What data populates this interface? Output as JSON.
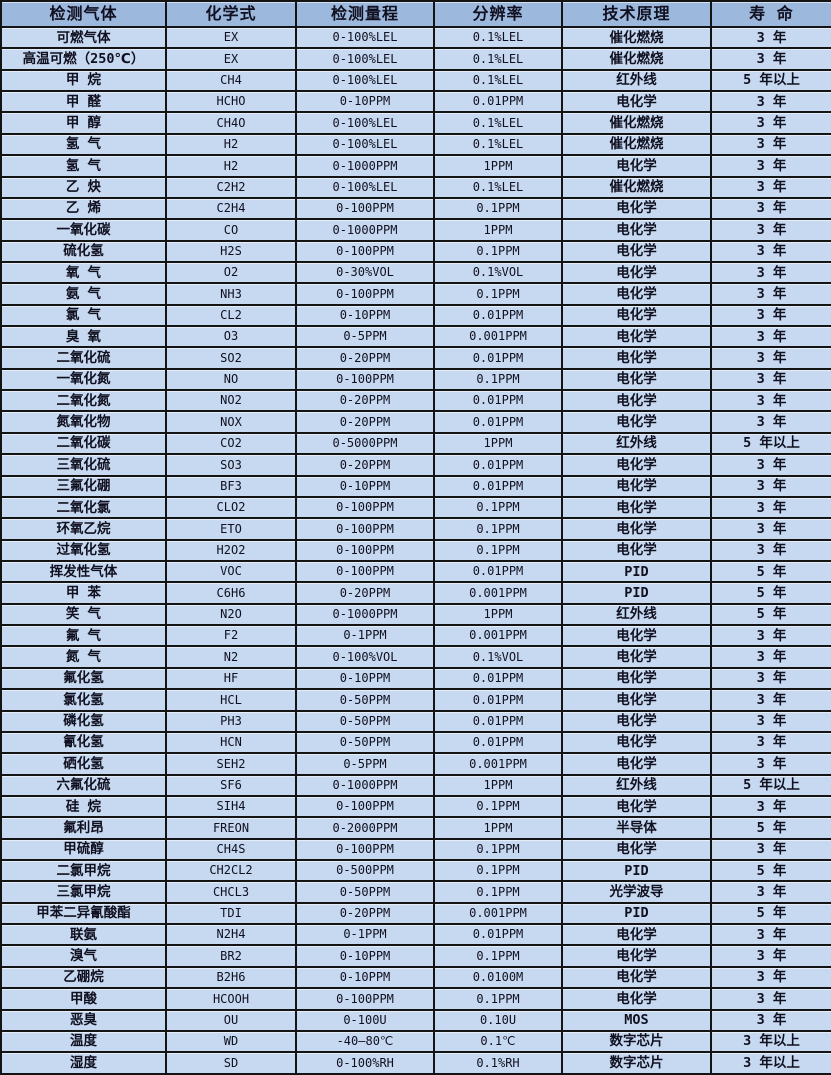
{
  "colors": {
    "header_bg": "#9cb8dc",
    "row_bg": "#c6d9f0",
    "border_color": "#141414",
    "text_color": "#101020"
  },
  "table": {
    "headers": [
      "检测气体",
      "化学式",
      "检测量程",
      "分辨率",
      "技术原理",
      "寿 命"
    ],
    "rows": [
      [
        "可燃气体",
        "EX",
        "0-100%LEL",
        "0.1%LEL",
        "催化燃烧",
        "3 年"
      ],
      [
        "高温可燃（250℃）",
        "EX",
        "0-100%LEL",
        "0.1%LEL",
        "催化燃烧",
        "3 年"
      ],
      [
        "甲 烷",
        "CH4",
        "0-100%LEL",
        "0.1%LEL",
        "红外线",
        "5 年以上"
      ],
      [
        "甲 醛",
        "HCHO",
        "0-10PPM",
        "0.01PPM",
        "电化学",
        "3 年"
      ],
      [
        "甲 醇",
        "CH4O",
        "0-100%LEL",
        "0.1%LEL",
        "催化燃烧",
        "3 年"
      ],
      [
        "氢 气",
        "H2",
        "0-100%LEL",
        "0.1%LEL",
        "催化燃烧",
        "3 年"
      ],
      [
        "氢 气",
        "H2",
        "0-1000PPM",
        "1PPM",
        "电化学",
        "3 年"
      ],
      [
        "乙 炔",
        "C2H2",
        "0-100%LEL",
        "0.1%LEL",
        "催化燃烧",
        "3 年"
      ],
      [
        "乙 烯",
        "C2H4",
        "0-100PPM",
        "0.1PPM",
        "电化学",
        "3 年"
      ],
      [
        "一氧化碳",
        "CO",
        "0-1000PPM",
        "1PPM",
        "电化学",
        "3 年"
      ],
      [
        "硫化氢",
        "H2S",
        "0-100PPM",
        "0.1PPM",
        "电化学",
        "3 年"
      ],
      [
        "氧 气",
        "O2",
        "0-30%VOL",
        "0.1%VOL",
        "电化学",
        "3 年"
      ],
      [
        "氨 气",
        "NH3",
        "0-100PPM",
        "0.1PPM",
        "电化学",
        "3 年"
      ],
      [
        "氯 气",
        "CL2",
        "0-10PPM",
        "0.01PPM",
        "电化学",
        "3 年"
      ],
      [
        "臭 氧",
        "O3",
        "0-5PPM",
        "0.001PPM",
        "电化学",
        "3 年"
      ],
      [
        "二氧化硫",
        "SO2",
        "0-20PPM",
        "0.01PPM",
        "电化学",
        "3 年"
      ],
      [
        "一氧化氮",
        "NO",
        "0-100PPM",
        "0.1PPM",
        "电化学",
        "3 年"
      ],
      [
        "二氧化氮",
        "NO2",
        "0-20PPM",
        "0.01PPM",
        "电化学",
        "3 年"
      ],
      [
        "氮氧化物",
        "NOX",
        "0-20PPM",
        "0.01PPM",
        "电化学",
        "3 年"
      ],
      [
        "二氧化碳",
        "CO2",
        "0-5000PPM",
        "1PPM",
        "红外线",
        "5 年以上"
      ],
      [
        "三氧化硫",
        "SO3",
        "0-20PPM",
        "0.01PPM",
        "电化学",
        "3 年"
      ],
      [
        "三氟化硼",
        "BF3",
        "0-10PPM",
        "0.01PPM",
        "电化学",
        "3 年"
      ],
      [
        "二氧化氯",
        "CLO2",
        "0-100PPM",
        "0.1PPM",
        "电化学",
        "3 年"
      ],
      [
        "环氧乙烷",
        "ETO",
        "0-100PPM",
        "0.1PPM",
        "电化学",
        "3 年"
      ],
      [
        "过氧化氢",
        "H2O2",
        "0-100PPM",
        "0.1PPM",
        "电化学",
        "3 年"
      ],
      [
        "挥发性气体",
        "VOC",
        "0-100PPM",
        "0.01PPM",
        "PID",
        "5 年"
      ],
      [
        "甲 苯",
        "C6H6",
        "0-20PPM",
        "0.001PPM",
        "PID",
        "5 年"
      ],
      [
        "笑 气",
        "N2O",
        "0-1000PPM",
        "1PPM",
        "红外线",
        "5 年"
      ],
      [
        "氟 气",
        "F2",
        "0-1PPM",
        "0.001PPM",
        "电化学",
        "3 年"
      ],
      [
        "氮 气",
        "N2",
        "0-100%VOL",
        "0.1%VOL",
        "电化学",
        "3 年"
      ],
      [
        "氟化氢",
        "HF",
        "0-10PPM",
        "0.01PPM",
        "电化学",
        "3 年"
      ],
      [
        "氯化氢",
        "HCL",
        "0-50PPM",
        "0.01PPM",
        "电化学",
        "3 年"
      ],
      [
        "磷化氢",
        "PH3",
        "0-50PPM",
        "0.01PPM",
        "电化学",
        "3 年"
      ],
      [
        "氰化氢",
        "HCN",
        "0-50PPM",
        "0.01PPM",
        "电化学",
        "3 年"
      ],
      [
        "硒化氢",
        "SEH2",
        "0-5PPM",
        "0.001PPM",
        "电化学",
        "3 年"
      ],
      [
        "六氟化硫",
        "SF6",
        "0-1000PPM",
        "1PPM",
        "红外线",
        "5 年以上"
      ],
      [
        "硅 烷",
        "SIH4",
        "0-100PPM",
        "0.1PPM",
        "电化学",
        "3 年"
      ],
      [
        "氟利昂",
        "FREON",
        "0-2000PPM",
        "1PPM",
        "半导体",
        "5 年"
      ],
      [
        "甲硫醇",
        "CH4S",
        "0-100PPM",
        "0.1PPM",
        "电化学",
        "3 年"
      ],
      [
        "二氯甲烷",
        "CH2CL2",
        "0-500PPM",
        "0.1PPM",
        "PID",
        "5 年"
      ],
      [
        "三氯甲烷",
        "CHCL3",
        "0-50PPM",
        "0.1PPM",
        "光学波导",
        "3 年"
      ],
      [
        "甲苯二异氰酸酯",
        "TDI",
        "0-20PPM",
        "0.001PPM",
        "PID",
        "5 年"
      ],
      [
        "联氨",
        "N2H4",
        "0-1PPM",
        "0.01PPM",
        "电化学",
        "3 年"
      ],
      [
        "溴气",
        "BR2",
        "0-10PPM",
        "0.1PPM",
        "电化学",
        "3 年"
      ],
      [
        "乙硼烷",
        "B2H6",
        "0-10PPM",
        "0.0100M",
        "电化学",
        "3 年"
      ],
      [
        "甲酸",
        "HCOOH",
        "0-100PPM",
        "0.1PPM",
        "电化学",
        "3 年"
      ],
      [
        "恶臭",
        "OU",
        "0-100U",
        "0.10U",
        "MOS",
        "3 年"
      ],
      [
        "温度",
        "WD",
        "-40—80℃",
        "0.1℃",
        "数字芯片",
        "3 年以上"
      ],
      [
        "湿度",
        "SD",
        "0-100%RH",
        "0.1%RH",
        "数字芯片",
        "3 年以上"
      ]
    ]
  }
}
